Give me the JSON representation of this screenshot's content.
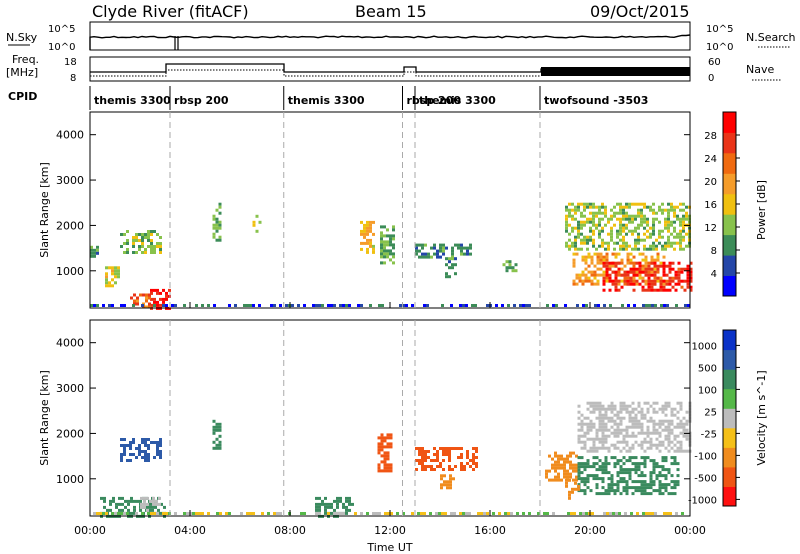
{
  "header": {
    "station": "Clyde River (fitACF)",
    "beam": "Beam 15",
    "date": "09/Oct/2015"
  },
  "panel_labels": {
    "nsky": "N.Sky",
    "nsearch": "N.Search",
    "freq_line1": "Freq.",
    "freq_line2": "[MHz]",
    "nave": "Nave",
    "cpid": "CPID"
  },
  "noise_axis": {
    "left_ticks": [
      "10^5",
      "10^0"
    ],
    "right_ticks": [
      "10^5",
      "10^0"
    ]
  },
  "freq_axis": {
    "left_ticks": [
      "18",
      "8"
    ],
    "right_ticks": [
      "60",
      "0"
    ]
  },
  "cpid_segments": [
    {
      "label": "themis 3300",
      "start": 0.0,
      "end": 3.2
    },
    {
      "label": "rbsp 200",
      "start": 3.2,
      "end": 7.75
    },
    {
      "label": "themis 3300",
      "start": 7.75,
      "end": 12.5
    },
    {
      "label": "rbsp 200",
      "start": 12.5,
      "end": 13.0
    },
    {
      "label": "themis 3300",
      "start": 13.0,
      "end": 18.0
    },
    {
      "label": "twofsound -3503",
      "start": 18.0,
      "end": 24.0
    }
  ],
  "time_axis": {
    "label": "Time UT",
    "ticks": [
      "00:00",
      "04:00",
      "08:00",
      "12:00",
      "16:00",
      "20:00",
      "00:00"
    ]
  },
  "colors": {
    "power_scale": [
      "#0000ff",
      "#2446a8",
      "#3c8c58",
      "#88c24c",
      "#f0c010",
      "#f59c2a",
      "#f06a10",
      "#ea3418",
      "#ff0000"
    ],
    "velocity_scale": [
      "#0a32c8",
      "#2d5aa8",
      "#3a8a5e",
      "#55b848",
      "#bcbcbc",
      "#f5c018",
      "#f08c1e",
      "#f05514",
      "#ff1010"
    ]
  },
  "chart_data": [
    {
      "type": "heatmap",
      "panel": "power",
      "xlabel": "Time UT",
      "ylabel": "Slant Range [km]",
      "ylim": [
        180,
        4500
      ],
      "y_ticks": [
        1000,
        2000,
        3000,
        4000
      ],
      "colorbar": {
        "label": "Power [dB]",
        "ticks": [
          "4",
          "8",
          "12",
          "16",
          "20",
          "24",
          "28"
        ],
        "range": [
          0,
          30
        ]
      },
      "patches": [
        {
          "t0": 2.4,
          "t1": 3.15,
          "r0": 200,
          "r1": 600,
          "v": 28
        },
        {
          "t0": 1.6,
          "t1": 2.4,
          "r0": 200,
          "r1": 500,
          "v": 22
        },
        {
          "t0": 1.2,
          "t1": 2.8,
          "r0": 1400,
          "r1": 1900,
          "v": 12
        },
        {
          "t0": 0.6,
          "t1": 1.2,
          "r0": 700,
          "r1": 1100,
          "v": 14
        },
        {
          "t0": 0.0,
          "t1": 0.3,
          "r0": 1300,
          "r1": 1550,
          "v": 8
        },
        {
          "t0": 4.9,
          "t1": 5.2,
          "r0": 1700,
          "r1": 2500,
          "v": 10
        },
        {
          "t0": 6.5,
          "t1": 6.8,
          "r0": 1900,
          "r1": 2300,
          "v": 13
        },
        {
          "t0": 10.8,
          "t1": 11.4,
          "r0": 1400,
          "r1": 2100,
          "v": 16
        },
        {
          "t0": 11.6,
          "t1": 12.1,
          "r0": 1200,
          "r1": 2000,
          "v": 10
        },
        {
          "t0": 13.0,
          "t1": 15.2,
          "r0": 1300,
          "r1": 1600,
          "v": 8
        },
        {
          "t0": 14.2,
          "t1": 14.6,
          "r0": 900,
          "r1": 1300,
          "v": 9
        },
        {
          "t0": 16.5,
          "t1": 17.0,
          "r0": 1000,
          "r1": 1300,
          "v": 10
        },
        {
          "t0": 19.0,
          "t1": 24.0,
          "r0": 1500,
          "r1": 2500,
          "v": 12
        },
        {
          "t0": 19.3,
          "t1": 23.0,
          "r0": 700,
          "r1": 1400,
          "v": 18
        },
        {
          "t0": 20.5,
          "t1": 24.0,
          "r0": 600,
          "r1": 1200,
          "v": 26
        }
      ]
    },
    {
      "type": "heatmap",
      "panel": "velocity",
      "xlabel": "Time UT",
      "ylabel": "Slant Range [km]",
      "ylim": [
        180,
        4500
      ],
      "y_ticks": [
        1000,
        2000,
        3000,
        4000
      ],
      "colorbar": {
        "label": "Velocity [m s^-1]",
        "ticks": [
          "1000",
          "500",
          "100",
          "25",
          "-25",
          "-100",
          "-500",
          "-1000"
        ]
      },
      "patches": [
        {
          "t0": 1.2,
          "t1": 2.8,
          "r0": 1400,
          "r1": 1900,
          "v": 600
        },
        {
          "t0": 0.4,
          "t1": 3.0,
          "r0": 200,
          "r1": 600,
          "v": 120
        },
        {
          "t0": 2.0,
          "t1": 2.8,
          "r0": 300,
          "r1": 600,
          "v": 0
        },
        {
          "t0": 4.9,
          "t1": 5.2,
          "r0": 1700,
          "r1": 2300,
          "v": 300
        },
        {
          "t0": 9.0,
          "t1": 10.5,
          "r0": 200,
          "r1": 600,
          "v": 120
        },
        {
          "t0": 11.5,
          "t1": 12.1,
          "r0": 1200,
          "r1": 2000,
          "v": -600
        },
        {
          "t0": 13.0,
          "t1": 15.5,
          "r0": 1200,
          "r1": 1700,
          "v": -700
        },
        {
          "t0": 14.0,
          "t1": 14.6,
          "r0": 800,
          "r1": 1100,
          "v": -300
        },
        {
          "t0": 18.2,
          "t1": 19.5,
          "r0": 1000,
          "r1": 1600,
          "v": -300
        },
        {
          "t0": 19.5,
          "t1": 24.0,
          "r0": 1600,
          "r1": 2700,
          "v": 0
        },
        {
          "t0": 19.5,
          "t1": 23.5,
          "r0": 700,
          "r1": 1500,
          "v": 250
        },
        {
          "t0": 19.0,
          "t1": 19.5,
          "r0": 600,
          "r1": 1000,
          "v": -150
        }
      ]
    }
  ]
}
